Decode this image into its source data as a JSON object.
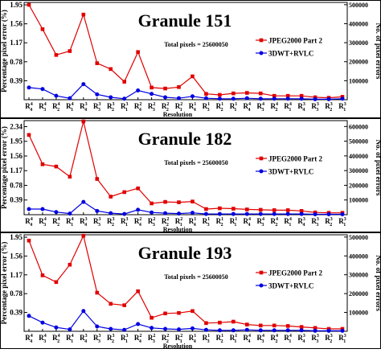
{
  "chart_data": [
    {
      "type": "line",
      "title": "Granule 151",
      "annotation": "Total pixels = 25600050",
      "xlabel": "Resolution",
      "ylabel_left": "Percentage pixel error (%)",
      "ylabel_right": "No. of pixel errors",
      "yticks_left": [
        "0.39",
        "0.78",
        "1.17",
        "1.56",
        "1.95"
      ],
      "yticks_right": [
        "100000",
        "200000",
        "300000",
        "400000",
        "500000"
      ],
      "ylim_left": [
        0,
        2.0
      ],
      "categories": [
        "R4,4",
        "R4,3",
        "R4,2",
        "R4,1",
        "R3,4",
        "R3,3",
        "R3,2",
        "R3,1",
        "R2,4",
        "R2,3",
        "R2,2",
        "R2,1",
        "R1,4",
        "R1,3",
        "R1,2",
        "R1,1",
        "R4,4",
        "R4,3",
        "R4,2",
        "R4,1",
        "R3,4",
        "R3,3",
        "R3,2",
        "R3,1"
      ],
      "legend_position": "right",
      "series": [
        {
          "name": "JPEG2000 Part 2",
          "color": "#e00000",
          "marker": "square",
          "values": [
            1.95,
            1.45,
            0.92,
            1.0,
            1.75,
            0.75,
            0.63,
            0.37,
            0.98,
            0.25,
            0.23,
            0.26,
            0.48,
            0.12,
            0.1,
            0.13,
            0.14,
            0.13,
            0.08,
            0.08,
            0.08,
            0.05,
            0.04,
            0.06
          ]
        },
        {
          "name": "3DWT+RVLC",
          "color": "#0000e0",
          "marker": "circle",
          "values": [
            0.25,
            0.22,
            0.08,
            0.03,
            0.32,
            0.11,
            0.05,
            0.02,
            0.19,
            0.12,
            0.05,
            0.03,
            0.07,
            0.03,
            0.02,
            0.02,
            0.03,
            0.02,
            0.02,
            0.02,
            0.02,
            0.01,
            0.01,
            0.02
          ]
        }
      ]
    },
    {
      "type": "line",
      "title": "Granule 182",
      "annotation": "Total pixels = 25600050",
      "xlabel": "Resolution",
      "ylabel_left": "Percentage pixel error (%)",
      "ylabel_right": "No. of pixel errors",
      "yticks_left": [
        "0.39",
        "0.78",
        "1.17",
        "1.56",
        "1.95",
        "2.34"
      ],
      "yticks_right": [
        "100000",
        "200000",
        "300000",
        "400000",
        "500000",
        "600000"
      ],
      "ylim_left": [
        0,
        2.5
      ],
      "categories": [
        "R4,4",
        "R4,3",
        "R4,2",
        "R4,1",
        "R3,4",
        "R3,3",
        "R3,2",
        "R3,1",
        "R2,4",
        "R2,3",
        "R2,2",
        "R2,1",
        "R1,4",
        "R1,3",
        "R1,2",
        "R1,1",
        "R4,4",
        "R4,3",
        "R4,2",
        "R4,1",
        "R3,4",
        "R3,3",
        "R3,2",
        "R3,1"
      ],
      "legend_position": "right",
      "series": [
        {
          "name": "JPEG2000 Part 2",
          "color": "#e00000",
          "marker": "square",
          "values": [
            2.12,
            1.34,
            1.28,
            1.01,
            2.48,
            0.95,
            0.48,
            0.6,
            0.7,
            0.3,
            0.34,
            0.33,
            0.35,
            0.15,
            0.17,
            0.16,
            0.14,
            0.13,
            0.12,
            0.12,
            0.1,
            0.06,
            0.05,
            0.05
          ]
        },
        {
          "name": "3DWT+RVLC",
          "color": "#0000e0",
          "marker": "circle",
          "values": [
            0.15,
            0.15,
            0.07,
            0.03,
            0.34,
            0.1,
            0.04,
            0.02,
            0.13,
            0.06,
            0.04,
            0.03,
            0.05,
            0.02,
            0.02,
            0.02,
            0.02,
            0.02,
            0.02,
            0.02,
            0.02,
            0.01,
            0.01,
            0.01
          ]
        }
      ]
    },
    {
      "type": "line",
      "title": "Granule 193",
      "annotation": "Total pixels = 25600050",
      "xlabel": "Resolution",
      "ylabel_left": "Percentage pixel error (%)",
      "ylabel_right": "No. of pixel errors",
      "yticks_left": [
        "0.39",
        "0.78",
        "1.17",
        "1.56",
        "1.95"
      ],
      "yticks_right": [
        "100000",
        "200000",
        "300000",
        "400000",
        "500000"
      ],
      "ylim_left": [
        0,
        2.0
      ],
      "categories": [
        "R4,4",
        "R4,3",
        "R4,2",
        "R4,1",
        "R3,4",
        "R3,3",
        "R3,2",
        "R3,1",
        "R2,4",
        "R2,3",
        "R2,2",
        "R2,1",
        "R1,4",
        "R1,3",
        "R1,2",
        "R1,1",
        "R4,4",
        "R4,3",
        "R4,2",
        "R4,1",
        "R3,4",
        "R3,3",
        "R3,2",
        "R3,1"
      ],
      "legend_position": "right",
      "series": [
        {
          "name": "JPEG2000 Part 2",
          "color": "#e00000",
          "marker": "square",
          "values": [
            1.88,
            1.16,
            1.02,
            1.38,
            1.98,
            0.8,
            0.57,
            0.54,
            0.83,
            0.28,
            0.37,
            0.38,
            0.42,
            0.17,
            0.18,
            0.2,
            0.14,
            0.12,
            0.12,
            0.11,
            0.09,
            0.07,
            0.05,
            0.05
          ]
        },
        {
          "name": "3DWT+RVLC",
          "color": "#0000e0",
          "marker": "circle",
          "values": [
            0.32,
            0.18,
            0.08,
            0.04,
            0.42,
            0.1,
            0.05,
            0.03,
            0.15,
            0.07,
            0.05,
            0.04,
            0.06,
            0.03,
            0.02,
            0.02,
            0.03,
            0.02,
            0.02,
            0.02,
            0.02,
            0.01,
            0.01,
            0.01
          ]
        }
      ]
    }
  ]
}
